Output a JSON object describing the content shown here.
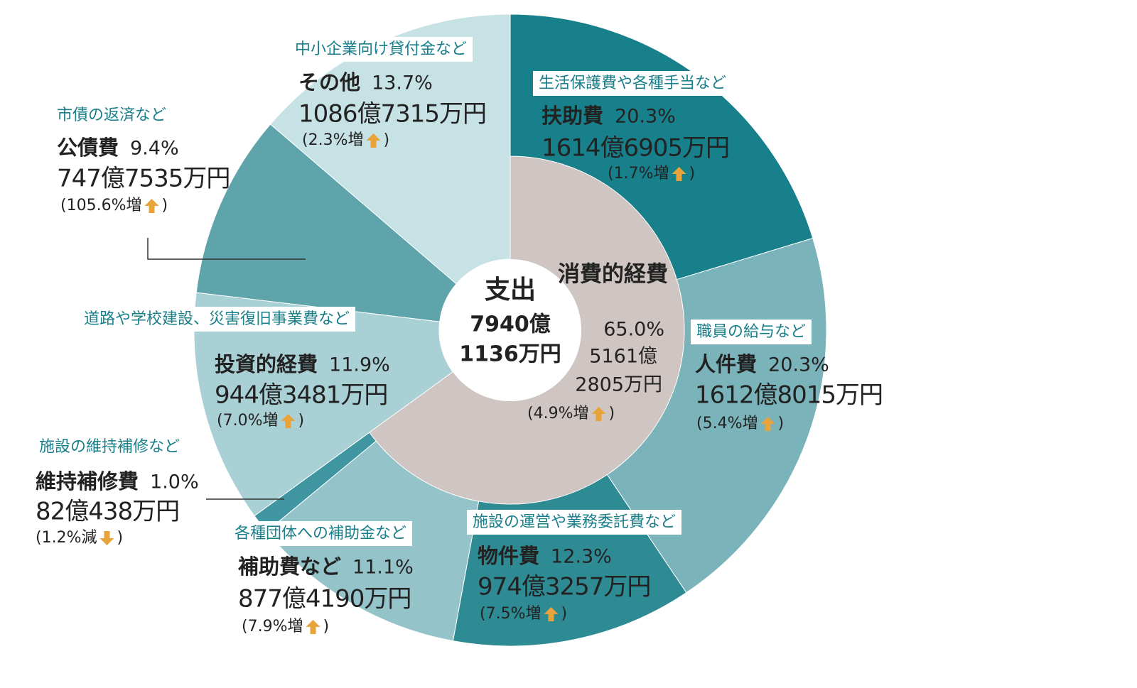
{
  "chart_data": {
    "type": "donut",
    "center": {
      "title": "支出",
      "line1": "7940億",
      "line2": "1136万円"
    },
    "inner": {
      "name": "消費的経費",
      "value": 65.0,
      "value_label": "65.0%",
      "line1": "5161億",
      "line2": "2805万円",
      "change": "(4.9%増",
      "close": ")",
      "direction": "up",
      "color": "#cfc6c3"
    },
    "categories": [
      "扶助費",
      "人件費",
      "物件費",
      "補助費など",
      "維持補修費",
      "投資的経費",
      "公債費",
      "その他"
    ],
    "descriptions": [
      "生活保護費や各種手当など",
      "職員の給与など",
      "施設の運営や業務委託費など",
      "各種団体への補助金など",
      "施設の維持補修など",
      "道路や学校建設、災害復旧事業費など",
      "市債の返済など",
      "中小企業向け貸付金など"
    ],
    "values": [
      20.3,
      20.3,
      12.3,
      11.1,
      1.0,
      11.9,
      9.4,
      13.7
    ],
    "value_labels": [
      "20.3%",
      "20.3%",
      "12.3%",
      "11.1%",
      "1.0%",
      "11.9%",
      "9.4%",
      "13.7%"
    ],
    "amounts": [
      "1614億6905万円",
      "1612億8015万円",
      "974億3257万円",
      "877億4190万円",
      "82億438万円",
      "944億3481万円",
      "747億7535万円",
      "1086億7315万円"
    ],
    "changes": [
      "(1.7%増",
      "(5.4%増",
      "(7.5%増",
      "(7.9%増",
      "(1.2%減",
      "(7.0%増",
      "(105.6%増",
      "(2.3%増"
    ],
    "close": ")",
    "directions": [
      "up",
      "up",
      "up",
      "up",
      "down",
      "up",
      "up",
      "up"
    ],
    "colors": [
      "#17808a",
      "#7ab3ba",
      "#2e8a93",
      "#94c3c9",
      "#3f96a0",
      "#a9d0d5",
      "#5fa3ab",
      "#c7e2e5"
    ]
  }
}
